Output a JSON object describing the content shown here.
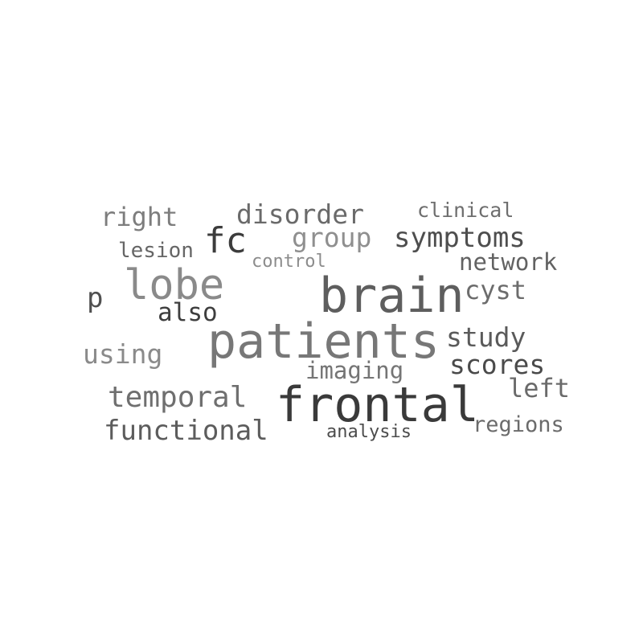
{
  "words": [
    {
      "text": "patients",
      "color": "#777777"
    },
    {
      "text": "frontal",
      "color": "#3a3a3a"
    },
    {
      "text": "brain",
      "color": "#5e5e5e"
    },
    {
      "text": "lobe",
      "color": "#8a8a8a"
    },
    {
      "text": "fc",
      "color": "#3c3c3c"
    },
    {
      "text": "disorder",
      "color": "#6a6a6a"
    },
    {
      "text": "symptoms",
      "color": "#4e4e4e"
    },
    {
      "text": "group",
      "color": "#8f8f8f"
    },
    {
      "text": "right",
      "color": "#7d7d7d"
    },
    {
      "text": "clinical",
      "color": "#6e6e6e"
    },
    {
      "text": "network",
      "color": "#626262"
    },
    {
      "text": "lesion",
      "color": "#666666"
    },
    {
      "text": "control",
      "color": "#8c8c8c"
    },
    {
      "text": "p",
      "color": "#505050"
    },
    {
      "text": "also",
      "color": "#3e3e3e"
    },
    {
      "text": "cyst",
      "color": "#6c6c6c"
    },
    {
      "text": "study",
      "color": "#5a5a5a"
    },
    {
      "text": "using",
      "color": "#8a8a8a"
    },
    {
      "text": "scores",
      "color": "#4a4a4a"
    },
    {
      "text": "imaging",
      "color": "#757575"
    },
    {
      "text": "temporal",
      "color": "#6f6f6f"
    },
    {
      "text": "left",
      "color": "#6a6a6a"
    },
    {
      "text": "functional",
      "color": "#5c5c5c"
    },
    {
      "text": "regions",
      "color": "#6b6b6b"
    },
    {
      "text": "analysis",
      "color": "#4c4c4c"
    }
  ]
}
